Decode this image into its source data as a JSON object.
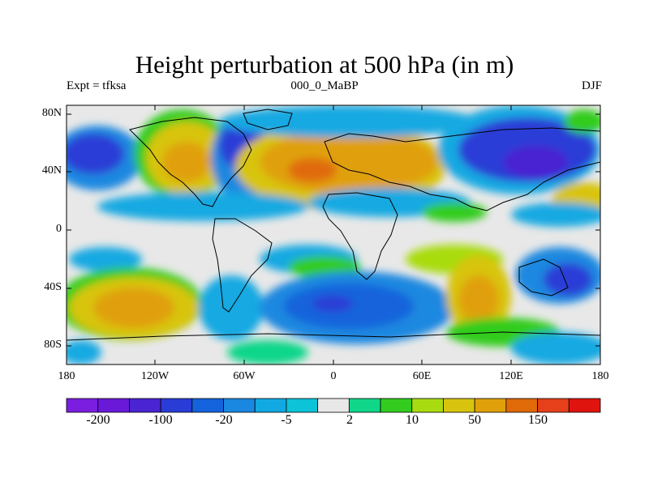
{
  "title": "Height perturbation at 500 hPa (in m)",
  "subtitle_left": "Expt = tfksa",
  "subtitle_center": "000_0_MaBP",
  "subtitle_right": "DJF",
  "y_ticks": [
    "80N",
    "40N",
    "0",
    "40S",
    "80S"
  ],
  "x_ticks": [
    "180",
    "120W",
    "60W",
    "0",
    "60E",
    "120E",
    "180"
  ],
  "colorbar": {
    "colors": [
      "#7b1ee0",
      "#6a19d8",
      "#4a23d2",
      "#2a3cd6",
      "#1463dc",
      "#1a88e0",
      "#12a9e2",
      "#0dc3d8",
      "#e8e8e8",
      "#10d68a",
      "#33cc1e",
      "#a9dc10",
      "#d8c40e",
      "#e0a00a",
      "#e06a08",
      "#e6401a",
      "#e0140e"
    ],
    "labels": [
      "-200",
      "-100",
      "-20",
      "-5",
      "2",
      "10",
      "50",
      "150"
    ]
  },
  "colors": {
    "background": "#e8e8e8",
    "coast": "#000000"
  }
}
